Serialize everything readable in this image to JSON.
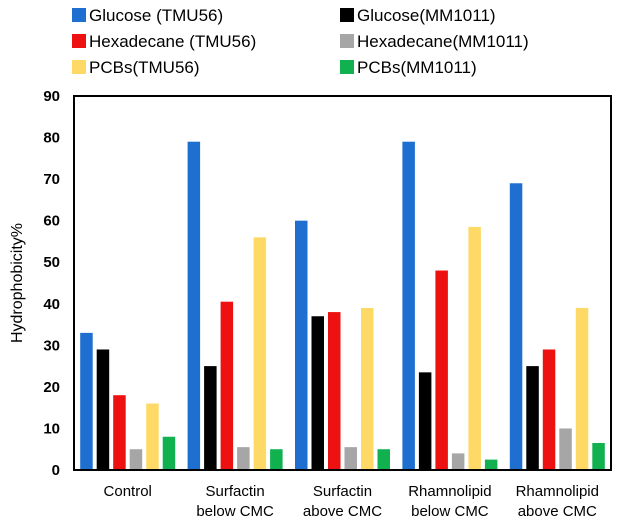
{
  "chart_data": {
    "type": "bar",
    "ylabel": "Hydrophobicity%",
    "xlabel": "",
    "ylim": [
      0,
      90
    ],
    "yticks": [
      0,
      10,
      20,
      30,
      40,
      50,
      60,
      70,
      80,
      90
    ],
    "categories": [
      [
        "Control"
      ],
      [
        "Surfactin",
        "below CMC"
      ],
      [
        "Surfactin",
        "above CMC"
      ],
      [
        "Rhamnolipid",
        "below CMC"
      ],
      [
        "Rhamnolipid",
        "above CMC"
      ]
    ],
    "legend_position": "top",
    "series": [
      {
        "name": "Glucose (TMU56)",
        "color": "#1f6fd1",
        "values": [
          33,
          79,
          60,
          79,
          69
        ]
      },
      {
        "name": "Glucose(MM1011)",
        "color": "#000000",
        "values": [
          29,
          25,
          37,
          23.5,
          25
        ]
      },
      {
        "name": "Hexadecane (TMU56)",
        "color": "#ee1111",
        "values": [
          18,
          40.5,
          38,
          48,
          29
        ]
      },
      {
        "name": "Hexadecane(MM1011)",
        "color": "#a6a6a6",
        "values": [
          5,
          5.5,
          5.5,
          4,
          10
        ]
      },
      {
        "name": "PCBs(TMU56)",
        "color": "#ffd966",
        "values": [
          16,
          56,
          39,
          58.5,
          39
        ]
      },
      {
        "name": "PCBs(MM1011)",
        "color": "#11b14f",
        "values": [
          8,
          5,
          5,
          2.5,
          6.5
        ]
      }
    ]
  }
}
